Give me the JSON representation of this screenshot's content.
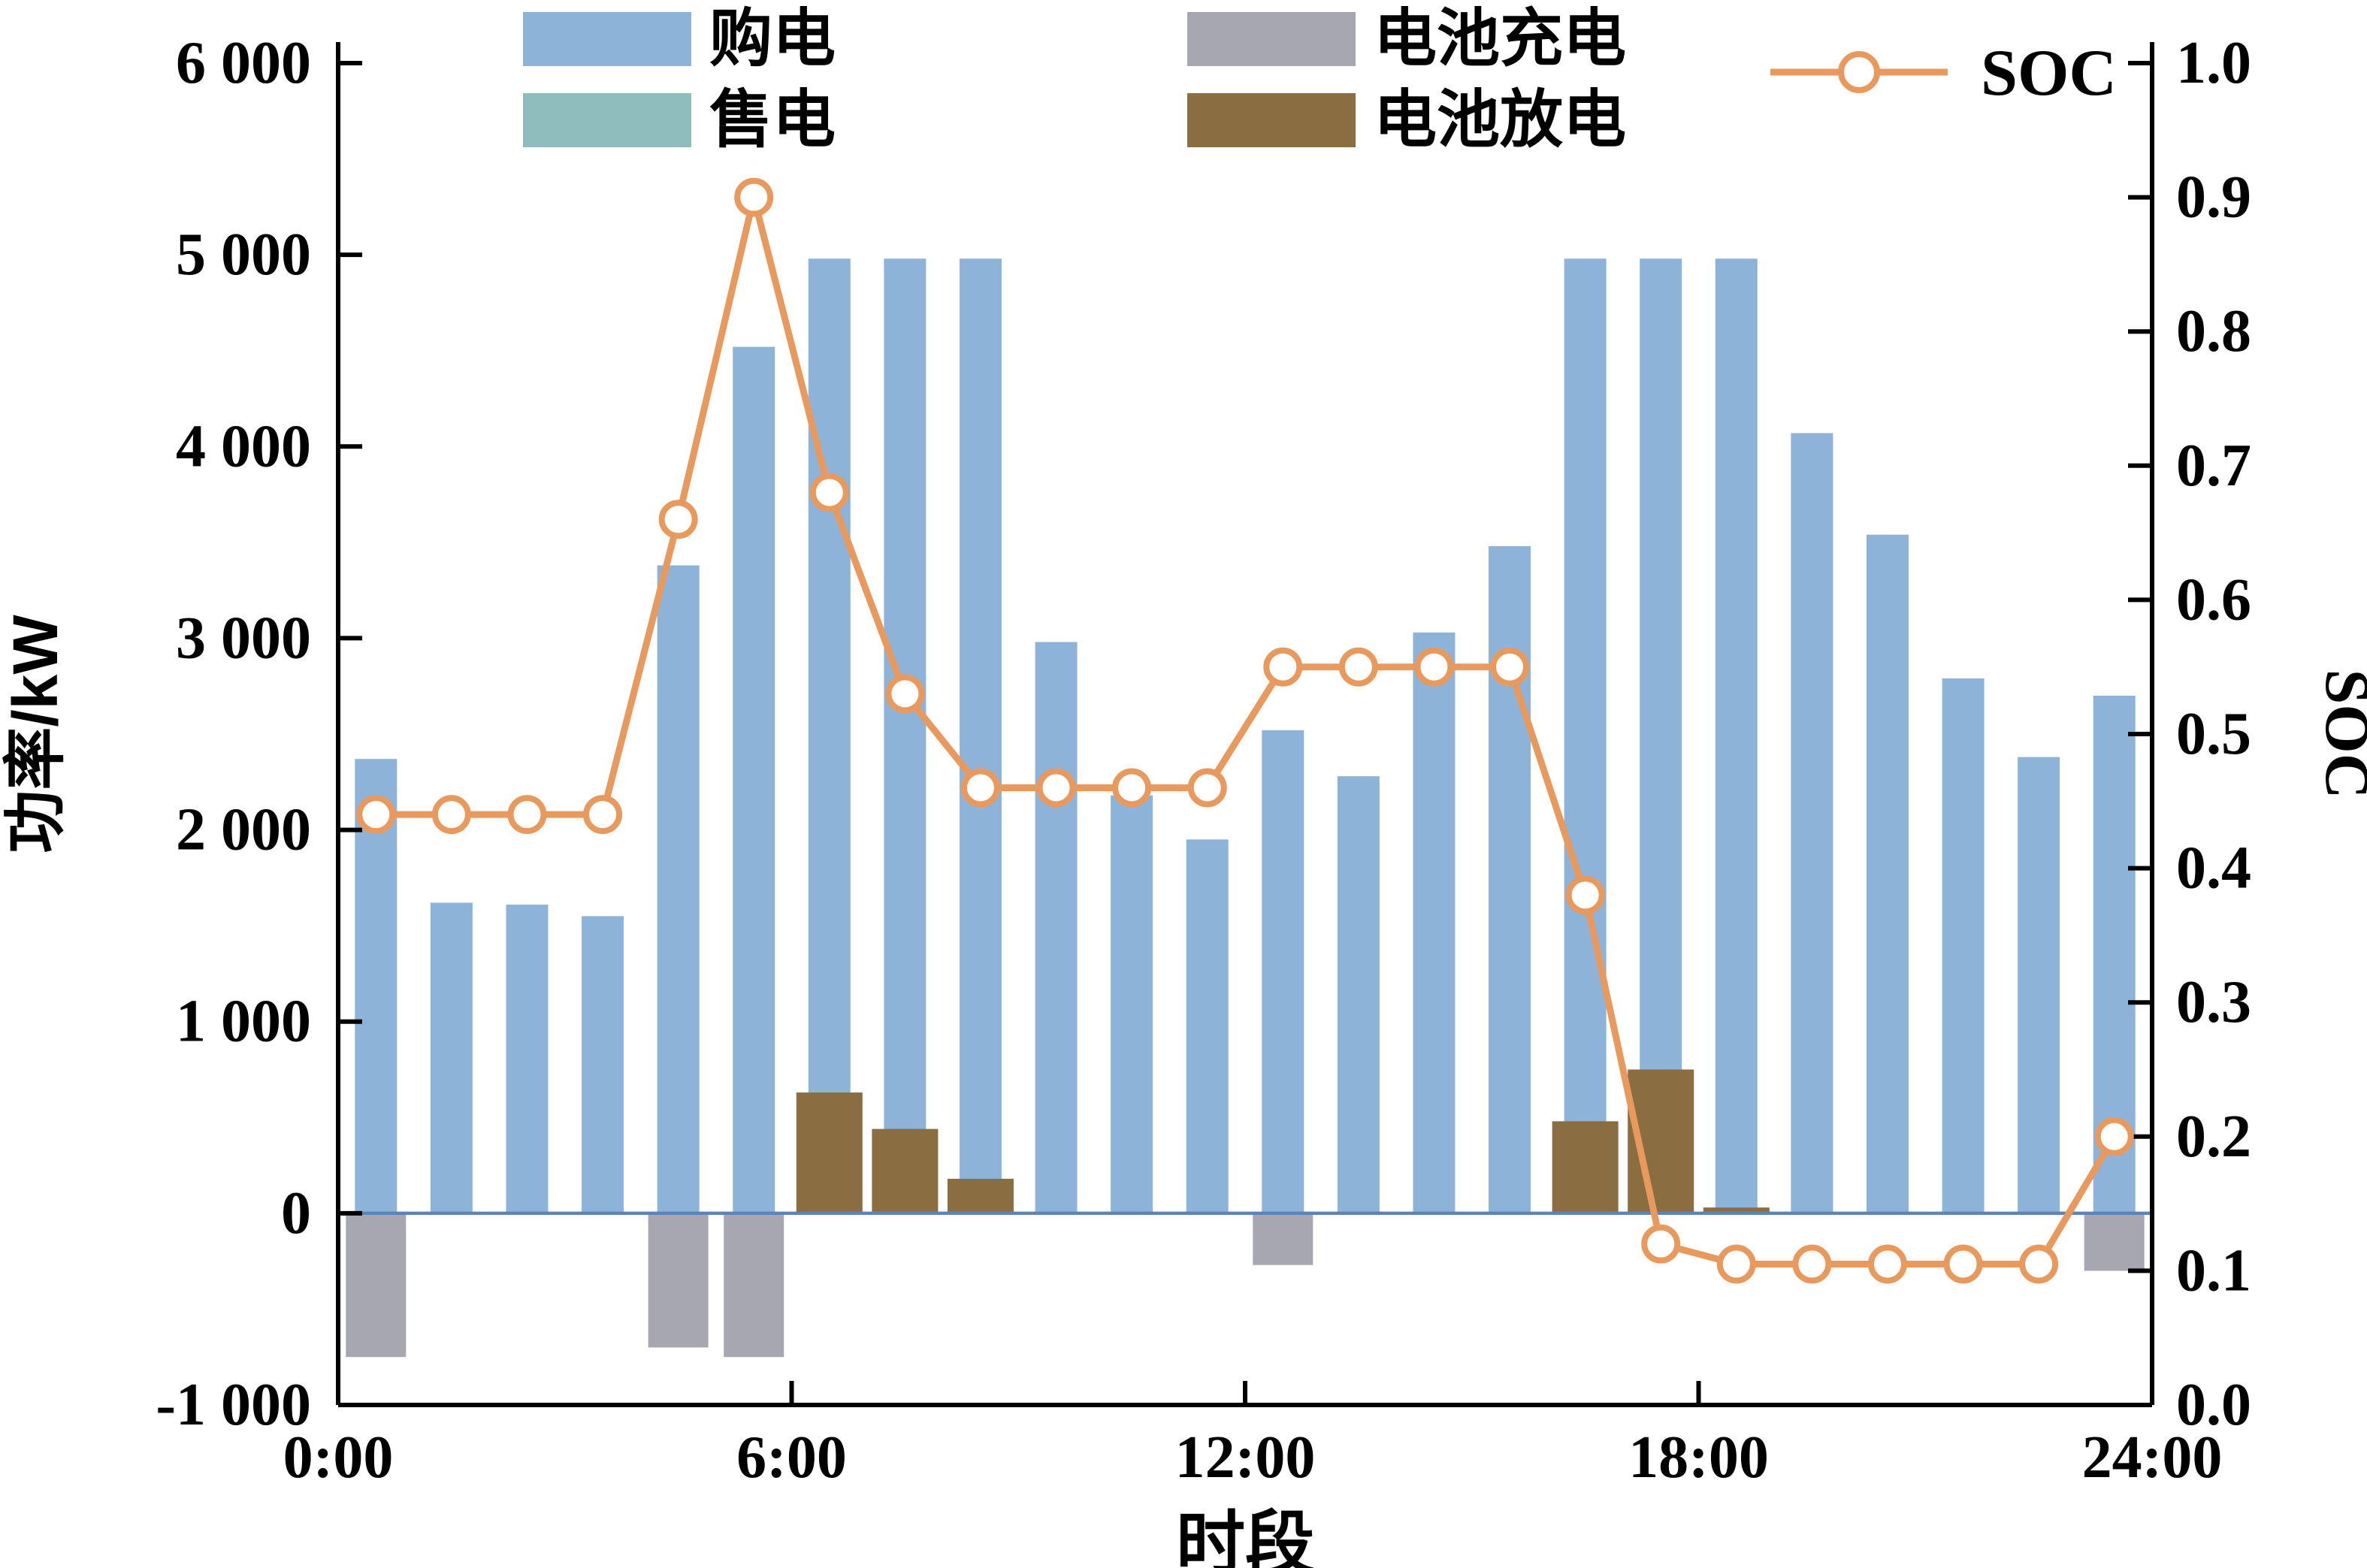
{
  "figure": {
    "xlabel": "时段",
    "ylabel_left": "功率/kW",
    "ylabel_right": "SOC"
  },
  "legend": {
    "items": [
      {
        "label": "购电",
        "type": "bar",
        "color": "#8DB4D8"
      },
      {
        "label": "售电",
        "type": "bar",
        "color": "#8FBCBC"
      },
      {
        "label": "电池充电",
        "type": "bar",
        "color": "#A7A7B2"
      },
      {
        "label": "电池放电",
        "type": "bar",
        "color": "#8B6D42"
      },
      {
        "label": "SOC",
        "type": "line",
        "color": "#E89A5E"
      }
    ]
  },
  "chart_data": {
    "type": "bar",
    "subtype": "bar+line combo, dual axis",
    "x_unit": "hour of day, bars centered on each 1-hour interval",
    "x_centers": [
      0.5,
      1.5,
      2.5,
      3.5,
      4.5,
      5.5,
      6.5,
      7.5,
      8.5,
      9.5,
      10.5,
      11.5,
      12.5,
      13.5,
      14.5,
      15.5,
      16.5,
      17.5,
      18.5,
      19.5,
      20.5,
      21.5,
      22.5,
      23.5
    ],
    "series": [
      {
        "name": "购电",
        "type": "bar",
        "axis": "left",
        "color": "#8DB4D8",
        "barwidth": 28,
        "values": [
          2370,
          1620,
          1610,
          1550,
          3380,
          4520,
          4980,
          4980,
          4980,
          2980,
          2180,
          1950,
          2520,
          2280,
          3030,
          3480,
          4980,
          4980,
          4980,
          4070,
          3540,
          2790,
          2380,
          2700
        ]
      },
      {
        "name": "售电",
        "type": "bar",
        "axis": "left",
        "color": "#8FBCBC",
        "barwidth": 28,
        "values": [
          0,
          0,
          0,
          0,
          0,
          0,
          0,
          0,
          0,
          0,
          0,
          0,
          0,
          0,
          0,
          0,
          0,
          0,
          0,
          0,
          0,
          0,
          0,
          0
        ]
      },
      {
        "name": "电池充电",
        "type": "bar",
        "axis": "left",
        "color": "#A7A7B2",
        "barwidth": 40,
        "values": [
          -750,
          0,
          0,
          0,
          -700,
          -750,
          0,
          0,
          0,
          0,
          0,
          0,
          -270,
          0,
          0,
          0,
          0,
          0,
          0,
          0,
          0,
          0,
          0,
          -300
        ]
      },
      {
        "name": "电池放电",
        "type": "bar",
        "axis": "left",
        "color": "#8B6D42",
        "barwidth": 44,
        "values": [
          630,
          440,
          180,
          480,
          750,
          30
        ],
        "values_full": [
          0,
          0,
          0,
          0,
          0,
          0,
          630,
          440,
          180,
          0,
          0,
          0,
          0,
          0,
          0,
          0,
          480,
          750,
          30,
          0,
          0,
          0,
          0,
          0
        ]
      },
      {
        "name": "SOC",
        "type": "line",
        "axis": "right",
        "color": "#E89A5E",
        "marker": "open-circle",
        "values": [
          0.44,
          0.44,
          0.44,
          0.44,
          0.66,
          0.9,
          0.68,
          0.53,
          0.46,
          0.46,
          0.46,
          0.46,
          0.55,
          0.55,
          0.55,
          0.55,
          0.38,
          0.12,
          0.105,
          0.105,
          0.105,
          0.105,
          0.105,
          0.2
        ]
      }
    ],
    "left_axis": {
      "label": "功率/kW",
      "min": -1000,
      "max": 6000,
      "ticks": [
        {
          "v": -1000,
          "label": "-1 000"
        },
        {
          "v": 0,
          "label": "0"
        },
        {
          "v": 1000,
          "label": "1 000"
        },
        {
          "v": 2000,
          "label": "2 000"
        },
        {
          "v": 3000,
          "label": "3 000"
        },
        {
          "v": 4000,
          "label": "4 000"
        },
        {
          "v": 5000,
          "label": "5 000"
        },
        {
          "v": 6000,
          "label": "6 000"
        }
      ]
    },
    "right_axis": {
      "label": "SOC",
      "min": 0.0,
      "max": 1.0,
      "ticks": [
        {
          "v": 0.0,
          "label": "0.0"
        },
        {
          "v": 0.1,
          "label": "0.1"
        },
        {
          "v": 0.2,
          "label": "0.2"
        },
        {
          "v": 0.3,
          "label": "0.3"
        },
        {
          "v": 0.4,
          "label": "0.4"
        },
        {
          "v": 0.5,
          "label": "0.5"
        },
        {
          "v": 0.6,
          "label": "0.6"
        },
        {
          "v": 0.7,
          "label": "0.7"
        },
        {
          "v": 0.8,
          "label": "0.8"
        },
        {
          "v": 0.9,
          "label": "0.9"
        },
        {
          "v": 1.0,
          "label": "1.0"
        }
      ]
    },
    "x_axis": {
      "label": "时段",
      "min": 0,
      "max": 24,
      "ticks": [
        {
          "v": 0,
          "label": "0:00"
        },
        {
          "v": 6,
          "label": "6:00"
        },
        {
          "v": 12,
          "label": "12:00"
        },
        {
          "v": 18,
          "label": "18:00"
        },
        {
          "v": 24,
          "label": "24:00"
        }
      ]
    },
    "zero_line_color": "#5B84B8",
    "grid": false,
    "legend_position": "top"
  }
}
